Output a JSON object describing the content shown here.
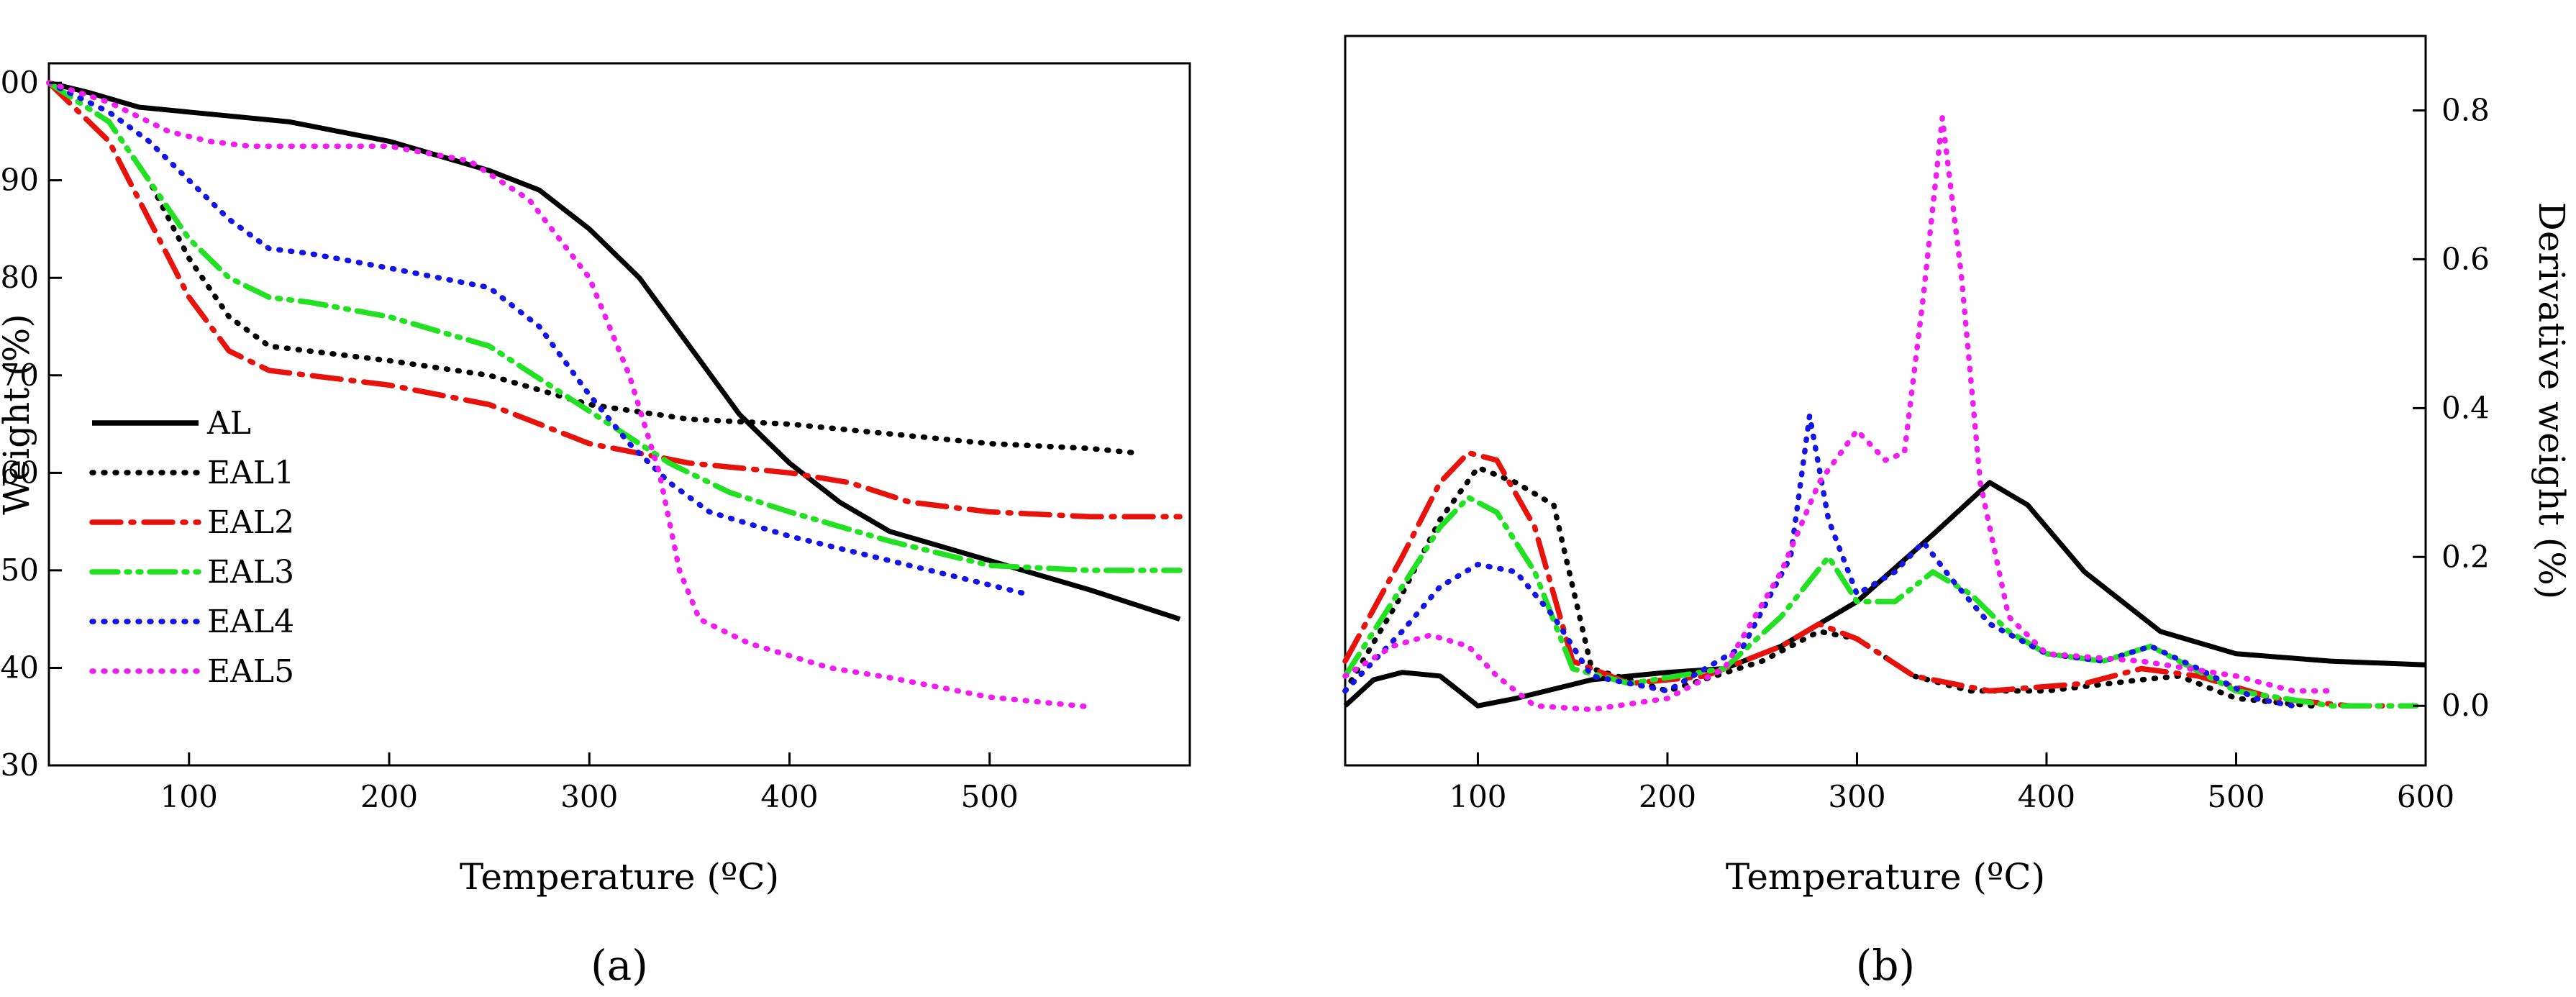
{
  "figure": {
    "panel_a_label": "(a)",
    "panel_b_label": "(b)"
  },
  "colors": {
    "AL": "#000000",
    "EAL1": "#000000",
    "EAL2": "#e8120c",
    "EAL3": "#22e022",
    "EAL4": "#1414e6",
    "EAL5": "#f01cf0"
  },
  "chart_data": [
    {
      "id": "a",
      "type": "line",
      "title": "",
      "xlabel": "Temperature (ºC)",
      "ylabel": "Weight (%)",
      "xlim": [
        30,
        600
      ],
      "ylim": [
        30,
        102
      ],
      "xticks": [
        100,
        200,
        300,
        400,
        500
      ],
      "yticks": [
        30,
        40,
        50,
        60,
        70,
        80,
        90,
        100
      ],
      "legend": [
        "AL",
        "EAL1",
        "EAL2",
        "EAL3",
        "EAL4",
        "EAL5"
      ],
      "legend_position": "lower-left",
      "series": [
        {
          "name": "AL",
          "style": "solid",
          "points": [
            [
              30,
              100
            ],
            [
              50,
              99
            ],
            [
              75,
              97.5
            ],
            [
              100,
              97
            ],
            [
              150,
              96
            ],
            [
              200,
              94
            ],
            [
              250,
              91
            ],
            [
              275,
              89
            ],
            [
              300,
              85
            ],
            [
              325,
              80
            ],
            [
              350,
              73
            ],
            [
              375,
              66
            ],
            [
              400,
              61
            ],
            [
              425,
              57
            ],
            [
              450,
              54
            ],
            [
              500,
              51
            ],
            [
              550,
              48
            ],
            [
              595,
              45
            ]
          ]
        },
        {
          "name": "EAL1",
          "style": "dot",
          "points": [
            [
              30,
              100
            ],
            [
              60,
              96
            ],
            [
              80,
              90
            ],
            [
              100,
              82
            ],
            [
              120,
              76
            ],
            [
              140,
              73
            ],
            [
              160,
              72.5
            ],
            [
              200,
              71.5
            ],
            [
              250,
              70
            ],
            [
              300,
              67
            ],
            [
              350,
              65.5
            ],
            [
              400,
              65
            ],
            [
              450,
              64
            ],
            [
              500,
              63
            ],
            [
              550,
              62.5
            ],
            [
              575,
              62
            ]
          ]
        },
        {
          "name": "EAL2",
          "style": "dashdot",
          "points": [
            [
              30,
              100
            ],
            [
              60,
              94
            ],
            [
              80,
              86
            ],
            [
              100,
              78
            ],
            [
              120,
              72.5
            ],
            [
              140,
              70.5
            ],
            [
              160,
              70
            ],
            [
              200,
              69
            ],
            [
              250,
              67
            ],
            [
              300,
              63
            ],
            [
              350,
              61
            ],
            [
              400,
              60
            ],
            [
              430,
              59
            ],
            [
              460,
              57
            ],
            [
              500,
              56
            ],
            [
              550,
              55.5
            ],
            [
              595,
              55.5
            ]
          ]
        },
        {
          "name": "EAL3",
          "style": "dashdotdot",
          "points": [
            [
              30,
              100
            ],
            [
              60,
              96
            ],
            [
              80,
              90
            ],
            [
              100,
              84
            ],
            [
              120,
              80
            ],
            [
              140,
              78
            ],
            [
              160,
              77.5
            ],
            [
              200,
              76
            ],
            [
              250,
              73
            ],
            [
              280,
              69
            ],
            [
              310,
              65
            ],
            [
              340,
              61
            ],
            [
              370,
              58
            ],
            [
              400,
              56
            ],
            [
              450,
              53
            ],
            [
              500,
              50.5
            ],
            [
              550,
              50
            ],
            [
              595,
              50
            ]
          ]
        },
        {
          "name": "EAL4",
          "style": "dot",
          "points": [
            [
              30,
              100
            ],
            [
              60,
              97
            ],
            [
              80,
              94
            ],
            [
              100,
              90
            ],
            [
              120,
              86
            ],
            [
              140,
              83
            ],
            [
              160,
              82.5
            ],
            [
              200,
              81
            ],
            [
              250,
              79
            ],
            [
              275,
              75
            ],
            [
              300,
              68
            ],
            [
              320,
              63
            ],
            [
              340,
              59
            ],
            [
              360,
              56
            ],
            [
              400,
              53.5
            ],
            [
              450,
              51
            ],
            [
              500,
              48.5
            ],
            [
              520,
              47.5
            ]
          ]
        },
        {
          "name": "EAL5",
          "style": "dot",
          "points": [
            [
              30,
              100
            ],
            [
              60,
              98
            ],
            [
              90,
              95
            ],
            [
              110,
              94
            ],
            [
              130,
              93.5
            ],
            [
              160,
              93.5
            ],
            [
              200,
              93.5
            ],
            [
              240,
              92
            ],
            [
              270,
              88
            ],
            [
              300,
              80
            ],
            [
              320,
              70
            ],
            [
              335,
              60
            ],
            [
              345,
              50
            ],
            [
              355,
              45
            ],
            [
              380,
              42.5
            ],
            [
              420,
              40
            ],
            [
              450,
              39
            ],
            [
              500,
              37
            ],
            [
              550,
              36
            ]
          ]
        }
      ]
    },
    {
      "id": "b",
      "type": "line",
      "title": "",
      "xlabel": "Temperature (ºC)",
      "ylabel": "Derivative weight (%)",
      "ylabel_side": "right",
      "xlim": [
        30,
        600
      ],
      "ylim": [
        -0.08,
        0.9
      ],
      "xticks": [
        100,
        200,
        300,
        400,
        500,
        600
      ],
      "yticks": [
        0.0,
        0.2,
        0.4,
        0.6,
        0.8
      ],
      "series": [
        {
          "name": "AL",
          "style": "solid",
          "points": [
            [
              30,
              0.0
            ],
            [
              45,
              0.035
            ],
            [
              60,
              0.045
            ],
            [
              80,
              0.04
            ],
            [
              100,
              0.0
            ],
            [
              120,
              0.01
            ],
            [
              160,
              0.035
            ],
            [
              200,
              0.045
            ],
            [
              230,
              0.05
            ],
            [
              260,
              0.08
            ],
            [
              300,
              0.14
            ],
            [
              340,
              0.23
            ],
            [
              370,
              0.3
            ],
            [
              390,
              0.27
            ],
            [
              420,
              0.18
            ],
            [
              460,
              0.1
            ],
            [
              500,
              0.07
            ],
            [
              550,
              0.06
            ],
            [
              600,
              0.055
            ]
          ]
        },
        {
          "name": "EAL1",
          "style": "dot",
          "points": [
            [
              30,
              0.02
            ],
            [
              60,
              0.15
            ],
            [
              80,
              0.25
            ],
            [
              100,
              0.32
            ],
            [
              120,
              0.3
            ],
            [
              140,
              0.27
            ],
            [
              160,
              0.05
            ],
            [
              200,
              0.02
            ],
            [
              250,
              0.06
            ],
            [
              280,
              0.1
            ],
            [
              300,
              0.09
            ],
            [
              330,
              0.04
            ],
            [
              360,
              0.02
            ],
            [
              400,
              0.02
            ],
            [
              450,
              0.035
            ],
            [
              470,
              0.04
            ],
            [
              500,
              0.01
            ],
            [
              540,
              0.0
            ]
          ]
        },
        {
          "name": "EAL2",
          "style": "dashdot",
          "points": [
            [
              30,
              0.06
            ],
            [
              60,
              0.2
            ],
            [
              80,
              0.3
            ],
            [
              95,
              0.34
            ],
            [
              110,
              0.33
            ],
            [
              130,
              0.24
            ],
            [
              150,
              0.06
            ],
            [
              180,
              0.03
            ],
            [
              220,
              0.04
            ],
            [
              260,
              0.08
            ],
            [
              280,
              0.11
            ],
            [
              300,
              0.09
            ],
            [
              330,
              0.04
            ],
            [
              370,
              0.02
            ],
            [
              420,
              0.03
            ],
            [
              450,
              0.05
            ],
            [
              480,
              0.04
            ],
            [
              520,
              0.01
            ],
            [
              560,
              0.0
            ],
            [
              580,
              0.0
            ]
          ]
        },
        {
          "name": "EAL3",
          "style": "dashdotdot",
          "points": [
            [
              30,
              0.04
            ],
            [
              60,
              0.16
            ],
            [
              80,
              0.24
            ],
            [
              95,
              0.28
            ],
            [
              110,
              0.26
            ],
            [
              130,
              0.18
            ],
            [
              150,
              0.05
            ],
            [
              180,
              0.03
            ],
            [
              230,
              0.05
            ],
            [
              260,
              0.12
            ],
            [
              285,
              0.2
            ],
            [
              300,
              0.14
            ],
            [
              320,
              0.14
            ],
            [
              340,
              0.18
            ],
            [
              360,
              0.15
            ],
            [
              380,
              0.1
            ],
            [
              400,
              0.07
            ],
            [
              430,
              0.06
            ],
            [
              455,
              0.08
            ],
            [
              470,
              0.06
            ],
            [
              500,
              0.02
            ],
            [
              550,
              0.0
            ],
            [
              595,
              0.0
            ]
          ]
        },
        {
          "name": "EAL4",
          "style": "dot",
          "points": [
            [
              30,
              0.02
            ],
            [
              60,
              0.1
            ],
            [
              80,
              0.16
            ],
            [
              100,
              0.19
            ],
            [
              120,
              0.18
            ],
            [
              140,
              0.12
            ],
            [
              160,
              0.04
            ],
            [
              200,
              0.02
            ],
            [
              240,
              0.08
            ],
            [
              265,
              0.2
            ],
            [
              275,
              0.39
            ],
            [
              285,
              0.25
            ],
            [
              300,
              0.15
            ],
            [
              320,
              0.18
            ],
            [
              335,
              0.22
            ],
            [
              350,
              0.17
            ],
            [
              370,
              0.11
            ],
            [
              400,
              0.07
            ],
            [
              430,
              0.06
            ],
            [
              455,
              0.08
            ],
            [
              480,
              0.05
            ],
            [
              510,
              0.01
            ],
            [
              530,
              0.0
            ]
          ]
        },
        {
          "name": "EAL5",
          "style": "dot",
          "points": [
            [
              30,
              0.04
            ],
            [
              55,
              0.08
            ],
            [
              75,
              0.095
            ],
            [
              95,
              0.08
            ],
            [
              110,
              0.04
            ],
            [
              130,
              0.0
            ],
            [
              160,
              -0.005
            ],
            [
              200,
              0.01
            ],
            [
              230,
              0.05
            ],
            [
              260,
              0.18
            ],
            [
              280,
              0.3
            ],
            [
              300,
              0.37
            ],
            [
              315,
              0.33
            ],
            [
              325,
              0.34
            ],
            [
              335,
              0.55
            ],
            [
              345,
              0.79
            ],
            [
              355,
              0.58
            ],
            [
              365,
              0.3
            ],
            [
              380,
              0.12
            ],
            [
              400,
              0.07
            ],
            [
              450,
              0.06
            ],
            [
              500,
              0.04
            ],
            [
              530,
              0.02
            ],
            [
              550,
              0.02
            ]
          ]
        }
      ]
    }
  ]
}
